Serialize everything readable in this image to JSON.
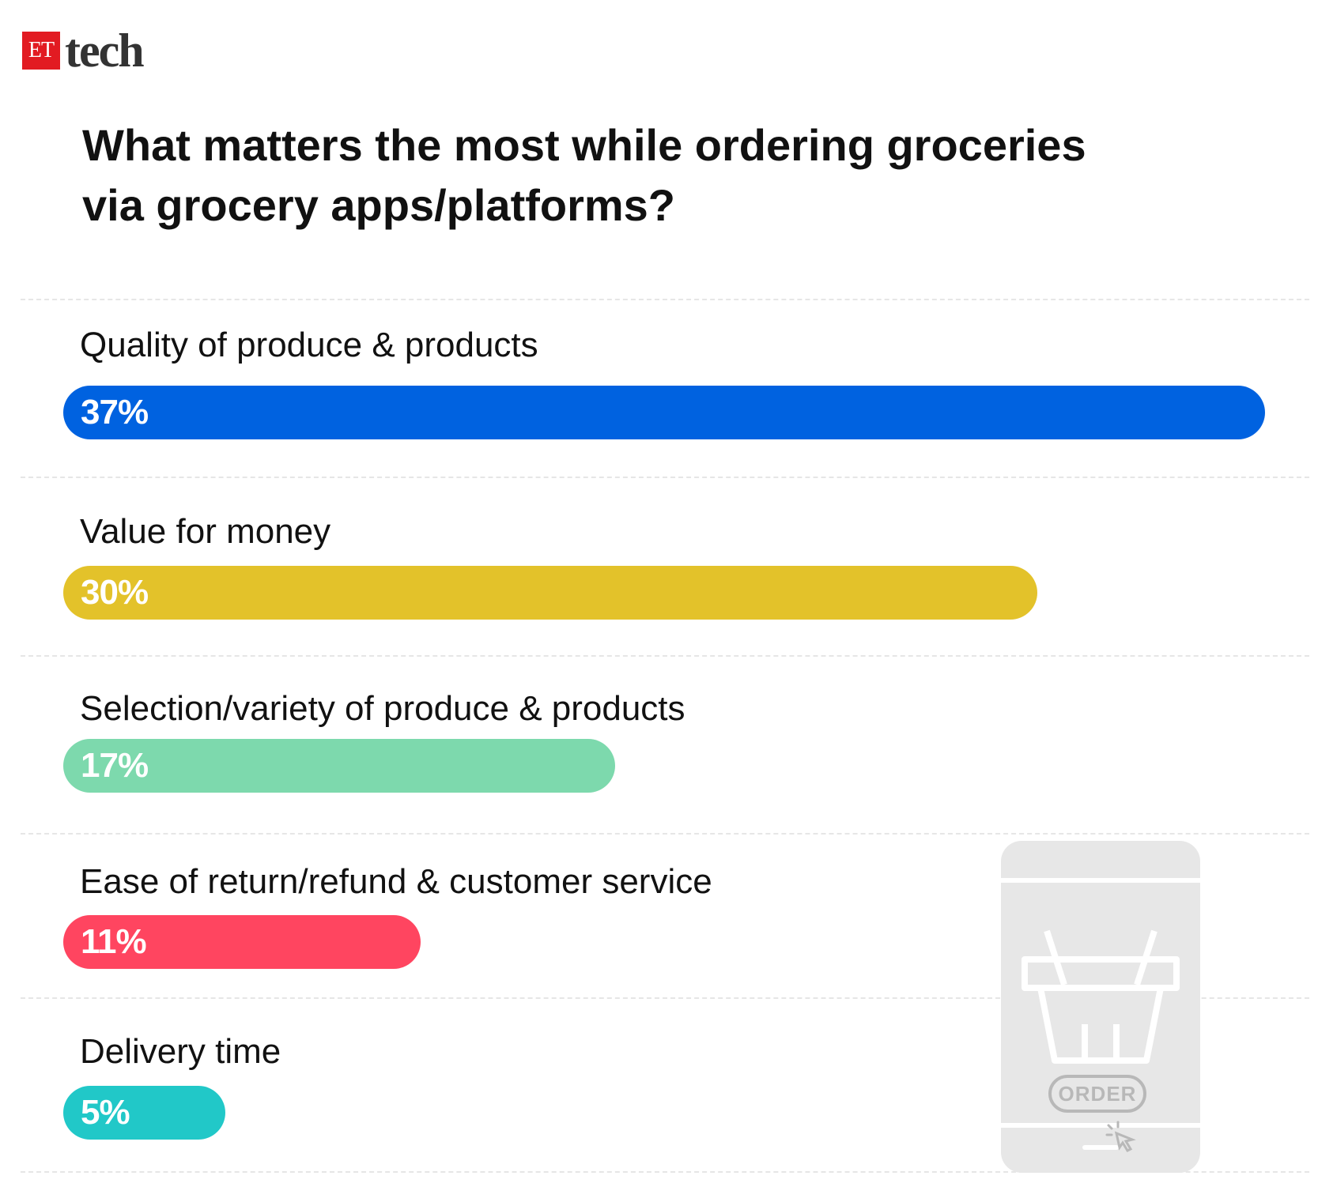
{
  "brand": {
    "mark": "ET",
    "name": "tech"
  },
  "illustration": {
    "icon": "shopping-basket-phone-icon",
    "order_label": "ORDER"
  },
  "chart_data": {
    "type": "bar",
    "orientation": "horizontal",
    "title": "What matters the most while ordering groceries via grocery apps/platforms?",
    "title_lines": [
      "What matters the most while ordering groceries",
      "via grocery apps/platforms?"
    ],
    "xlabel": "",
    "ylabel": "",
    "value_suffix": "%",
    "grid": false,
    "legend": "none",
    "categories": [
      "Quality of produce & products",
      "Value for money",
      "Selection/variety of produce & products",
      "Ease of return/refund & customer service",
      "Delivery time"
    ],
    "values": [
      37,
      30,
      17,
      11,
      5
    ],
    "value_labels": [
      "37%",
      "30%",
      "17%",
      "11%",
      "5%"
    ],
    "colors": [
      "#0062e0",
      "#e3c22a",
      "#7dd9ad",
      "#ff4560",
      "#21c8c8"
    ]
  }
}
